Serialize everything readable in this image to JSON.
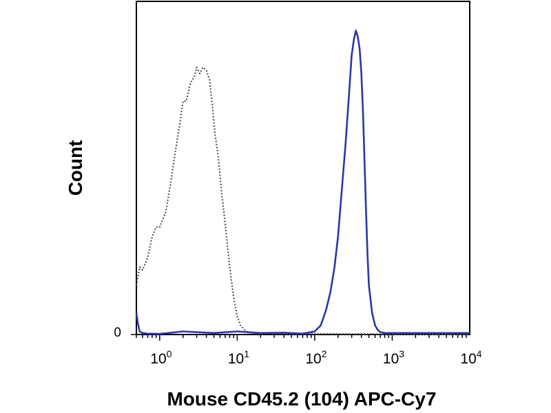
{
  "chart_data": {
    "type": "line",
    "title": "",
    "xlabel": "Mouse CD45.2 (104) APC-Cy7",
    "ylabel": "Count",
    "xscale": "log",
    "x_tick_labels": [
      {
        "base": "10",
        "exp": "0",
        "value": 1
      },
      {
        "base": "10",
        "exp": "1",
        "value": 10
      },
      {
        "base": "10",
        "exp": "2",
        "value": 100
      },
      {
        "base": "10",
        "exp": "3",
        "value": 1000
      },
      {
        "base": "10",
        "exp": "4",
        "value": 10000
      }
    ],
    "y_tick_labels": [
      {
        "label": "0",
        "value": 0
      }
    ],
    "xlim": [
      0.5,
      10000
    ],
    "ylim": [
      0,
      100
    ],
    "grid": false,
    "series": [
      {
        "style": "dotted",
        "color": "#555555",
        "x": [
          0.5,
          0.55,
          0.6,
          0.7,
          0.8,
          0.9,
          1.0,
          1.2,
          1.4,
          1.6,
          1.8,
          2.0,
          2.2,
          2.5,
          2.8,
          3.0,
          3.3,
          3.6,
          4.0,
          4.4,
          4.8,
          5.2,
          5.7,
          6.2,
          7.0,
          8.0,
          9.0,
          10,
          11,
          12,
          13,
          15,
          20,
          30,
          50,
          100,
          200,
          500,
          1000,
          10000
        ],
        "y": [
          16,
          22,
          21,
          25,
          32,
          35,
          35,
          40,
          50,
          60,
          68,
          76,
          76,
          82,
          84,
          87,
          85,
          87,
          86,
          83,
          74,
          65,
          58,
          48,
          36,
          22,
          12,
          6,
          3,
          2,
          1,
          0.5,
          0.3,
          0.5,
          0.2,
          0.3,
          0.2,
          0.2,
          0.1,
          0
        ]
      },
      {
        "style": "solid",
        "color": "#2b35a8",
        "x": [
          0.5,
          0.52,
          0.55,
          0.6,
          0.7,
          1,
          2,
          5,
          10,
          20,
          40,
          70,
          100,
          120,
          140,
          160,
          180,
          200,
          220,
          250,
          280,
          300,
          320,
          340,
          360,
          380,
          400,
          420,
          440,
          460,
          480,
          500,
          550,
          600,
          650,
          700,
          800,
          1000,
          2000,
          5000,
          10000
        ],
        "y": [
          7,
          4,
          1,
          0.5,
          0.3,
          0.2,
          1,
          0.5,
          1,
          0.5,
          0.6,
          0.3,
          1,
          3,
          8,
          14,
          22,
          32,
          45,
          62,
          80,
          91,
          96,
          99,
          97,
          93,
          85,
          72,
          56,
          40,
          26,
          16,
          7,
          3,
          1.5,
          0.8,
          0.5,
          0.5,
          0.5,
          0.5,
          0.5
        ]
      }
    ]
  }
}
